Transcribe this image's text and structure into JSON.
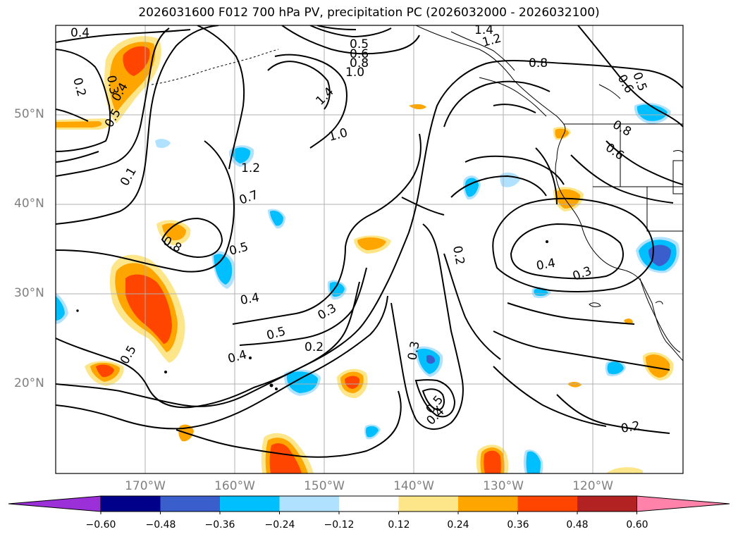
{
  "title": "2026031600 F012 700 hPa PV, precipitation PC (2026032000 - 2026032100)",
  "map": {
    "projection": "cylindrical",
    "lon_range": [
      -180,
      -110
    ],
    "lat_range": [
      10,
      60
    ],
    "lat_ticks": [
      "50°N",
      "40°N",
      "30°N",
      "20°N"
    ],
    "lon_ticks": [
      "170°W",
      "160°W",
      "150°W",
      "140°W",
      "130°W",
      "120°W"
    ],
    "grid": true,
    "contour_labels": [
      "0.4",
      "0.2",
      "0.3",
      "0.4",
      "0.5",
      "0.5",
      "0.6",
      "0.8",
      "1.0",
      "1.4",
      "1.2",
      "0.8",
      "0.6",
      "0.5",
      "0.8",
      "0.6",
      "1.2",
      "1.0",
      "0.7",
      "0.8",
      "0.5",
      "0.4",
      "0.5",
      "0.3",
      "0.2",
      "0.4",
      "0.5",
      "0.3",
      "0.2",
      "0.4",
      "0.3",
      "0.5",
      "0.4",
      "0.2",
      "1.4",
      "1.2",
      "0.1"
    ]
  },
  "colorbar": {
    "ticks": [
      "−0.60",
      "−0.48",
      "−0.36",
      "−0.24",
      "−0.12",
      "0.12",
      "0.24",
      "0.36",
      "0.48",
      "0.60"
    ],
    "colors": [
      "#9b30d9",
      "#00008b",
      "#3a5fcd",
      "#00bfff",
      "#b0e2ff",
      "#ffffff",
      "#fde68a",
      "#ffa500",
      "#ff4500",
      "#b22222",
      "#ff82ab"
    ]
  }
}
